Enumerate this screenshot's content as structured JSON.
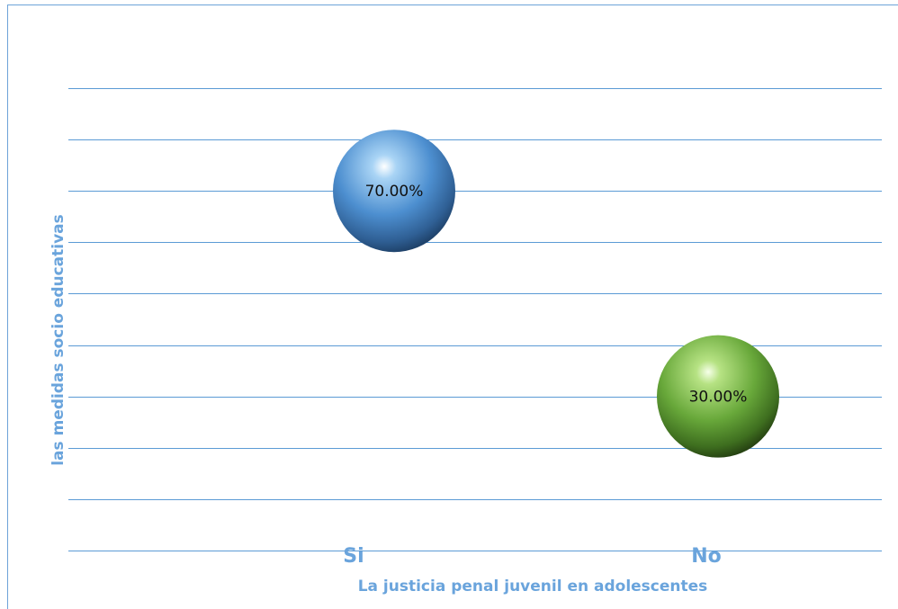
{
  "chart_data": {
    "type": "scatter",
    "title": "",
    "xlabel": "La justicia penal juvenil en adolescentes",
    "ylabel": "las medidas socio educativas",
    "categories": [
      "Si",
      "No"
    ],
    "values": [
      70.0,
      30.0
    ],
    "data_labels": [
      "70.00%",
      "30.00%"
    ],
    "ylim": [
      0,
      90
    ],
    "grid": true,
    "legend": "none",
    "point_colors": [
      "#5b9bd5",
      "#70ad47"
    ]
  }
}
